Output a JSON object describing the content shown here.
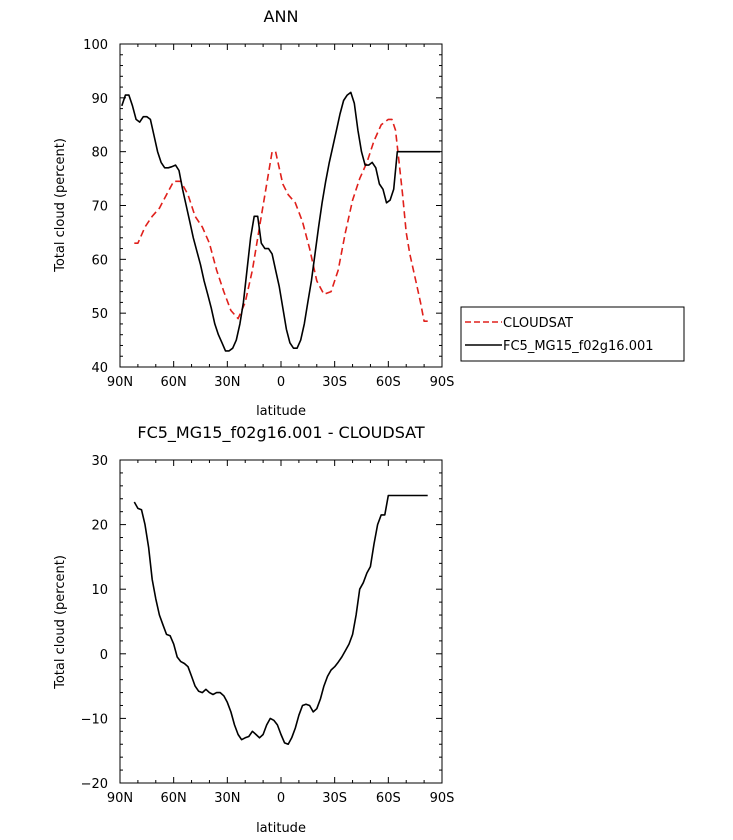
{
  "chart_data": [
    {
      "type": "line",
      "title": "ANN",
      "xlabel": "latitude",
      "ylabel": "Total cloud (percent)",
      "xlim": [
        90,
        -90
      ],
      "ylim": [
        40,
        100
      ],
      "x_ticks": [
        90,
        60,
        30,
        0,
        -30,
        -60,
        -90
      ],
      "x_tick_labels": [
        "90N",
        "60N",
        "30N",
        "0",
        "30S",
        "60S",
        "90S"
      ],
      "y_ticks": [
        40,
        50,
        60,
        70,
        80,
        90,
        100
      ],
      "y_tick_labels": [
        "40",
        "50",
        "60",
        "70",
        "80",
        "90",
        "100"
      ],
      "legend_position": "right",
      "series": [
        {
          "name": "CLOUDSAT",
          "color": "#e0201b",
          "dash": "dashed",
          "x": [
            82,
            80,
            76,
            72,
            68,
            64,
            60,
            56,
            52,
            48,
            44,
            40,
            36,
            32,
            28,
            24,
            20,
            16,
            12,
            8,
            5,
            3,
            1,
            -1,
            -4,
            -8,
            -12,
            -16,
            -20,
            -24,
            -28,
            -32,
            -36,
            -40,
            -44,
            -48,
            -52,
            -56,
            -60,
            -62,
            -64,
            -66,
            -68,
            -70,
            -72,
            -74,
            -76,
            -78,
            -80,
            -82
          ],
          "y": [
            63,
            63,
            66,
            68,
            69.5,
            72,
            74.5,
            74.5,
            72,
            68,
            66,
            63,
            58,
            54,
            50.5,
            49,
            52,
            58,
            66,
            74,
            80,
            80,
            77,
            74,
            72,
            70.5,
            67,
            62,
            56,
            53.5,
            54,
            58,
            65,
            71,
            75,
            78,
            82,
            85,
            86,
            86,
            84,
            78,
            72,
            65,
            61,
            58,
            55,
            52,
            48.5,
            48.5
          ]
        },
        {
          "name": "FC5_MG15_f02g16.001",
          "color": "#000000",
          "dash": "solid",
          "x": [
            89,
            87,
            85,
            83,
            81,
            79,
            77,
            75,
            73,
            71,
            69,
            67,
            65,
            63,
            61,
            59,
            57,
            55,
            53,
            51,
            49,
            47,
            45,
            43,
            41,
            39,
            37,
            35,
            33,
            31,
            29,
            27,
            25,
            23,
            21,
            19,
            17,
            15,
            13,
            11,
            9,
            7,
            5,
            3,
            1,
            -1,
            -3,
            -5,
            -7,
            -9,
            -11,
            -13,
            -15,
            -17,
            -19,
            -21,
            -23,
            -25,
            -27,
            -29,
            -31,
            -33,
            -35,
            -37,
            -39,
            -41,
            -43,
            -45,
            -47,
            -49,
            -51,
            -53,
            -55,
            -57,
            -59,
            -61,
            -63,
            -65,
            -67,
            -69,
            -71,
            -73,
            -75,
            -77,
            -79,
            -81,
            -83,
            -85,
            -87,
            -89
          ],
          "y": [
            88.5,
            90.5,
            90.5,
            88.5,
            86,
            85.5,
            86.5,
            86.5,
            86,
            83,
            80,
            78,
            77,
            77,
            77.2,
            77.5,
            76.5,
            73,
            70,
            67,
            64,
            61.5,
            59,
            56,
            53.5,
            51,
            48,
            46,
            44.5,
            43,
            43,
            43.5,
            45,
            48,
            52,
            58,
            64,
            68,
            68,
            63,
            62,
            62,
            61,
            58,
            55,
            51,
            47,
            44.5,
            43.5,
            43.5,
            45,
            48,
            52,
            56,
            61,
            66,
            70.5,
            74.5,
            78,
            81,
            84,
            87,
            89.5,
            90.5,
            91,
            89,
            84,
            80,
            77.5,
            77.5,
            78,
            77,
            74,
            73,
            70.5,
            71,
            73,
            80,
            80,
            80,
            80,
            80,
            80,
            80,
            80,
            80,
            80,
            80,
            80,
            80
          ]
        }
      ]
    },
    {
      "type": "line",
      "title": "FC5_MG15_f02g16.001 - CLOUDSAT",
      "xlabel": "latitude",
      "ylabel": "Total cloud (percent)",
      "xlim": [
        90,
        -90
      ],
      "ylim": [
        -20,
        30
      ],
      "x_ticks": [
        90,
        60,
        30,
        0,
        -30,
        -60,
        -90
      ],
      "x_tick_labels": [
        "90N",
        "60N",
        "30N",
        "0",
        "30S",
        "60S",
        "90S"
      ],
      "y_ticks": [
        -20,
        -10,
        0,
        10,
        20,
        30
      ],
      "y_tick_labels": [
        "−20",
        "−10",
        "0",
        "10",
        "20",
        "30"
      ],
      "series": [
        {
          "color": "#000000",
          "dash": "solid",
          "x": [
            82,
            80,
            78,
            76,
            74,
            72,
            70,
            68,
            66,
            64,
            62,
            60,
            58,
            56,
            54,
            52,
            50,
            48,
            46,
            44,
            42,
            40,
            38,
            36,
            34,
            32,
            30,
            28,
            26,
            24,
            22,
            20,
            18,
            16,
            14,
            12,
            10,
            8,
            6,
            4,
            2,
            0,
            -2,
            -4,
            -6,
            -8,
            -10,
            -12,
            -14,
            -16,
            -18,
            -20,
            -22,
            -24,
            -26,
            -28,
            -30,
            -32,
            -34,
            -36,
            -38,
            -40,
            -42,
            -44,
            -46,
            -48,
            -50,
            -52,
            -54,
            -56,
            -58,
            -60,
            -62,
            -64,
            -66,
            -68,
            -70,
            -72,
            -74,
            -76,
            -78,
            -80,
            -82
          ],
          "y": [
            23.5,
            22.5,
            22.3,
            20,
            16.5,
            11.5,
            8.5,
            6,
            4.5,
            3,
            2.8,
            1.5,
            -0.5,
            -1.2,
            -1.5,
            -2,
            -3.5,
            -5,
            -5.8,
            -6,
            -5.5,
            -6,
            -6.3,
            -6,
            -6,
            -6.5,
            -7.5,
            -9,
            -11,
            -12.5,
            -13.3,
            -13,
            -12.8,
            -12,
            -12.5,
            -13,
            -12.5,
            -11,
            -10,
            -10.3,
            -11,
            -12.5,
            -13.8,
            -14,
            -13,
            -11.5,
            -9.5,
            -8,
            -7.8,
            -8,
            -9,
            -8.5,
            -7,
            -5,
            -3.5,
            -2.5,
            -2,
            -1.3,
            -0.5,
            0.5,
            1.5,
            3,
            6,
            10,
            11,
            12.5,
            13.5,
            17,
            20,
            21.5,
            21.5,
            24.5,
            24.5,
            24.5,
            24.5,
            24.5,
            24.5,
            24.5,
            24.5,
            24.5,
            24.5,
            24.5,
            24.5
          ]
        }
      ]
    }
  ]
}
